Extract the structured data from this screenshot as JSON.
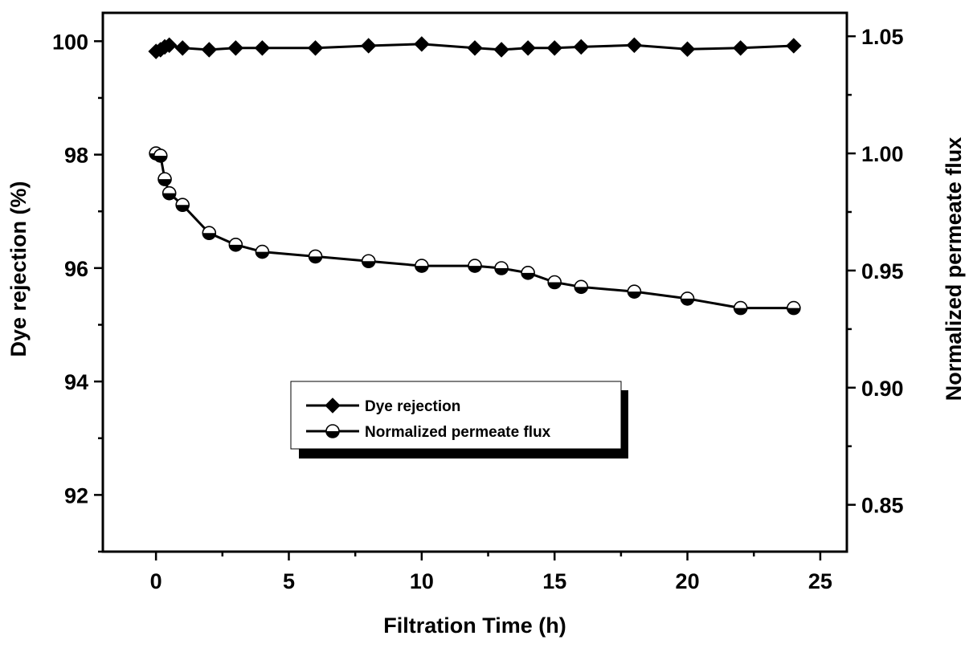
{
  "chart_data": {
    "type": "line",
    "xlabel": "Filtration Time (h)",
    "ylabel": "Dye rejection (%)",
    "y2label": "Normalized permeate flux",
    "xlim": [
      -2,
      26
    ],
    "ylim": [
      91,
      100.5
    ],
    "y2lim": [
      0.83,
      1.06
    ],
    "xticks": [
      0,
      5,
      10,
      15,
      20,
      25
    ],
    "yticks": [
      92,
      94,
      96,
      98,
      100
    ],
    "y2ticks": [
      0.85,
      0.9,
      0.95,
      1.0,
      1.05
    ],
    "xtick_labels": [
      "0",
      "5",
      "10",
      "15",
      "20",
      "25"
    ],
    "ytick_labels": [
      "92",
      "94",
      "96",
      "98",
      "100"
    ],
    "y2tick_labels": [
      "0.85",
      "0.90",
      "0.95",
      "1.00",
      "1.05"
    ],
    "grid": false,
    "legend_position": "center",
    "series": [
      {
        "name": "Dye rejection",
        "axis": "left",
        "marker": "diamond",
        "x": [
          0,
          0.17,
          0.33,
          0.5,
          1,
          2,
          3,
          4,
          6,
          8,
          10,
          12,
          13,
          14,
          15,
          16,
          18,
          20,
          22,
          24
        ],
        "y": [
          99.82,
          99.85,
          99.9,
          99.93,
          99.88,
          99.85,
          99.88,
          99.88,
          99.88,
          99.92,
          99.95,
          99.88,
          99.85,
          99.88,
          99.88,
          99.9,
          99.93,
          99.86,
          99.88,
          99.92
        ]
      },
      {
        "name": "Normalized permeate flux",
        "axis": "right",
        "marker": "half-filled-circle",
        "x": [
          0,
          0.17,
          0.33,
          0.5,
          1,
          2,
          3,
          4,
          6,
          8,
          10,
          12,
          13,
          14,
          15,
          16,
          18,
          20,
          22,
          24
        ],
        "y": [
          1.0,
          0.999,
          0.989,
          0.983,
          0.978,
          0.966,
          0.961,
          0.958,
          0.956,
          0.954,
          0.952,
          0.952,
          0.951,
          0.949,
          0.945,
          0.943,
          0.941,
          0.938,
          0.934,
          0.934
        ]
      }
    ]
  }
}
